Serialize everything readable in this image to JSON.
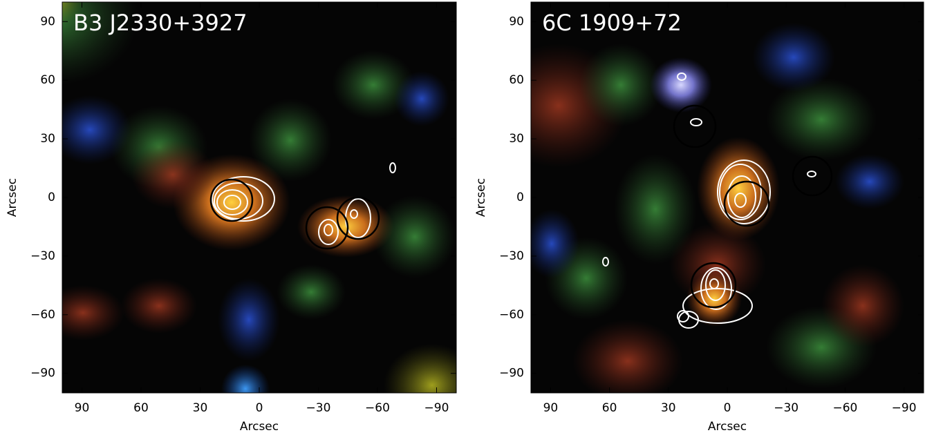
{
  "chart_data": [
    {
      "type": "image",
      "title": "B3 J2330+3927",
      "xlabel": "Arcsec",
      "ylabel": "Arcsec",
      "xlim": [
        100,
        -100
      ],
      "ylim": [
        -100,
        100
      ],
      "xticks": [
        90,
        60,
        30,
        0,
        {
          "value": -30,
          "label": "−30"
        },
        {
          "value": -60,
          "label": "−60"
        },
        {
          "value": -90,
          "label": "−90"
        }
      ],
      "yticks": [
        {
          "value": -90,
          "label": "−90"
        },
        {
          "value": -60,
          "label": "−60"
        },
        {
          "value": -30,
          "label": "−30"
        },
        0,
        30,
        60,
        90
      ]
    },
    {
      "type": "image",
      "title": "6C 1909+72",
      "xlabel": "Arcsec",
      "ylabel": "Arcsec",
      "xlim": [
        100,
        -100
      ],
      "ylim": [
        -100,
        100
      ],
      "xticks": [
        90,
        60,
        30,
        0,
        {
          "value": -30,
          "label": "−30"
        },
        {
          "value": -60,
          "label": "−60"
        },
        {
          "value": -90,
          "label": "−90"
        }
      ],
      "yticks": [
        {
          "value": -90,
          "label": "−90"
        },
        {
          "value": -60,
          "label": "−60"
        },
        {
          "value": -30,
          "label": "−30"
        },
        0,
        30,
        60,
        90
      ]
    }
  ]
}
